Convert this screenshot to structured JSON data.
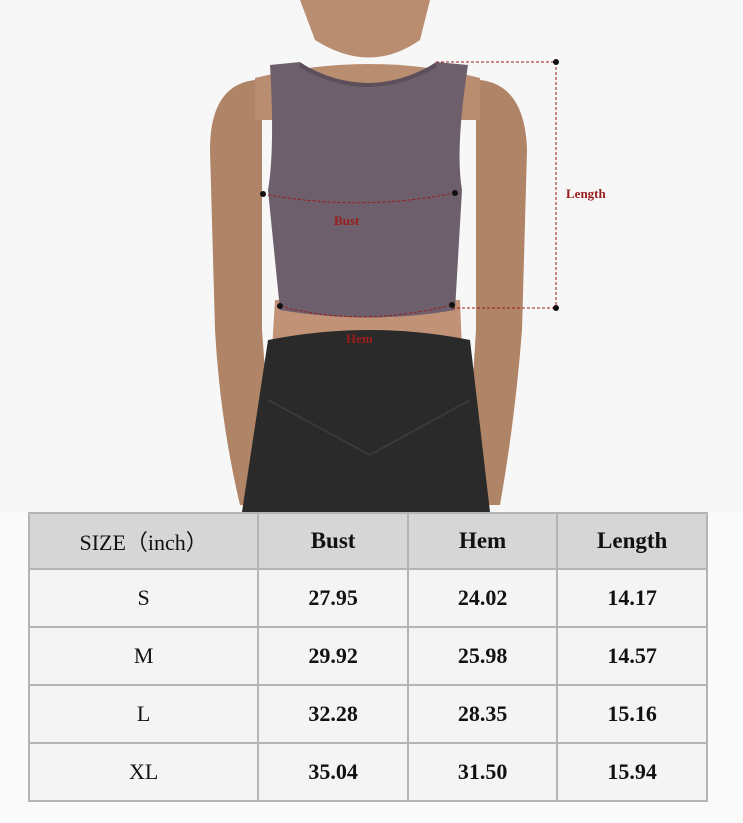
{
  "annotations": {
    "bust": "Bust",
    "hem": "Hem",
    "length": "Length"
  },
  "colors": {
    "top": "#6e5f6c",
    "leggings": "#2a2a2a",
    "skin": "#b58a6c",
    "annotation": "#9b1c1c"
  },
  "table": {
    "headers": [
      "SIZE（inch）",
      "Bust",
      "Hem",
      "Length"
    ],
    "rows": [
      [
        "S",
        "27.95",
        "24.02",
        "14.17"
      ],
      [
        "M",
        "29.92",
        "25.98",
        "14.57"
      ],
      [
        "L",
        "32.28",
        "28.35",
        "15.16"
      ],
      [
        "XL",
        "35.04",
        "31.50",
        "15.94"
      ]
    ]
  }
}
